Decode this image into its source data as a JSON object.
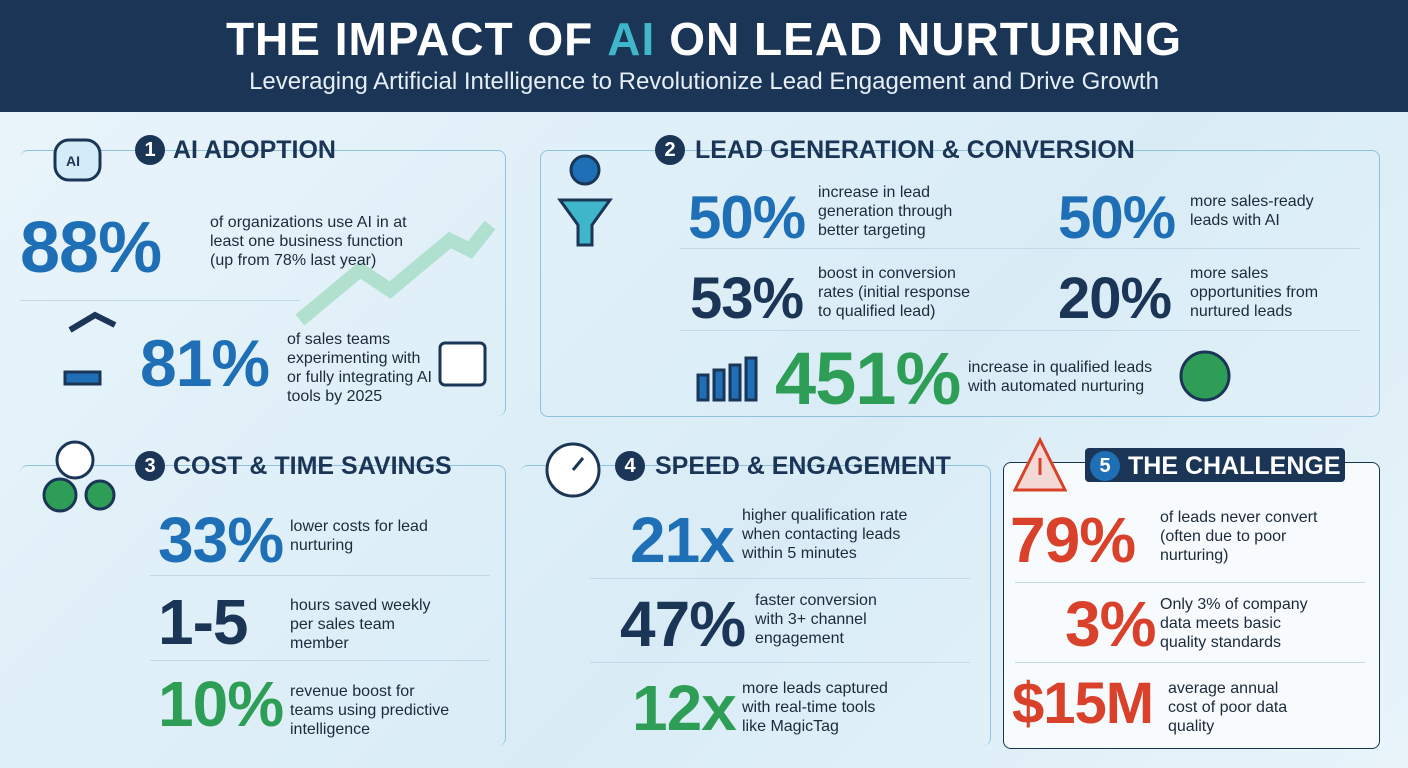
{
  "header": {
    "title": [
      "THE IMPACT OF",
      "AI",
      "ON LEAD NURTURING"
    ],
    "title_highlight_color": "#3fb6c9",
    "subtitle": "Leveraging Artificial Intelligence to Revolutionize Lead Engagement and Drive Growth"
  },
  "sections": [
    {
      "number": 1,
      "title": "AI ADOPTION",
      "stats": [
        {
          "value": "88%",
          "text": "of organizations use AI in at least one business function (up from 78% last year)",
          "color": "#1e6fb5"
        },
        {
          "value": "81%",
          "text": "of sales teams experimenting with or fully integrating AI tools by 2025",
          "color": "#1e6fb5"
        }
      ]
    },
    {
      "number": 2,
      "title": "LEAD GENERATION & CONVERSION",
      "stats": [
        {
          "value": "50%",
          "text": "increase in lead generation through better targeting",
          "color": "#1e6fb5"
        },
        {
          "value": "50%",
          "text": "more sales-ready leads with AI",
          "color": "#1e6fb5"
        },
        {
          "value": "53%",
          "text": "boost in conversion rates (initial response to qualified lead)",
          "color": "#1b3557"
        },
        {
          "value": "20%",
          "text": "more sales opportunities from nurtured leads",
          "color": "#1b3557"
        },
        {
          "value": "451%",
          "text": "increase in qualified leads with automated nurturing",
          "color": "#2e9e57"
        }
      ]
    },
    {
      "number": 3,
      "title": "COST & TIME SAVINGS",
      "stats": [
        {
          "value": "33%",
          "text": "lower costs for lead nurturing",
          "color": "#1e6fb5"
        },
        {
          "value": "1-5",
          "text": "hours saved weekly per sales team member",
          "color": "#1b3557"
        },
        {
          "value": "10%",
          "text": "revenue boost for teams using predictive intelligence",
          "color": "#2e9e57"
        }
      ]
    },
    {
      "number": 4,
      "title": "SPEED & ENGAGEMENT",
      "stats": [
        {
          "value": "21x",
          "text": "higher qualification rate when contacting leads within 5 minutes",
          "color": "#1e6fb5"
        },
        {
          "value": "47%",
          "text": "faster conversion with 3+ channel engagement",
          "color": "#1b3557"
        },
        {
          "value": "12x",
          "text": "more leads captured with real-time tools like MagicTag",
          "color": "#2e9e57"
        }
      ]
    },
    {
      "number": 5,
      "title": "THE CHALLENGE",
      "stats": [
        {
          "value": "79%",
          "text": "of leads never convert (often due to poor nurturing)",
          "color": "#d9412b"
        },
        {
          "value": "3%",
          "text": "Only 3% of company data meets basic quality standards",
          "color": "#d9412b"
        },
        {
          "value": "$15M",
          "text": "average annual cost of poor data quality",
          "color": "#d9412b"
        }
      ]
    }
  ]
}
